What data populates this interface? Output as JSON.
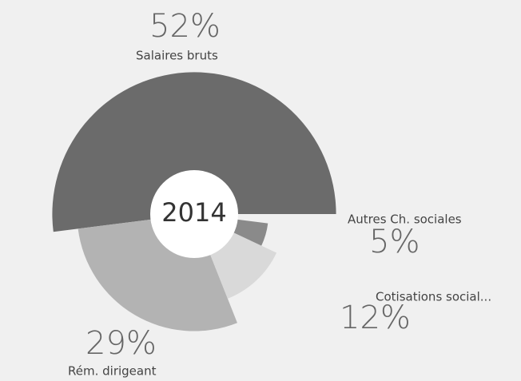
{
  "chart_data": {
    "type": "pie",
    "title": "2014",
    "categories": [
      "Salaires bruts",
      "Rém. dirigeant",
      "Cotisations social...",
      "Autres Ch. sociales"
    ],
    "values": [
      52,
      29,
      12,
      5
    ],
    "value_labels": [
      "52%",
      "29%",
      "12%",
      "5%"
    ],
    "colors": [
      "#6b6b6b",
      "#b3b3b3",
      "#d9d9d9",
      "#8a8a8a"
    ]
  }
}
